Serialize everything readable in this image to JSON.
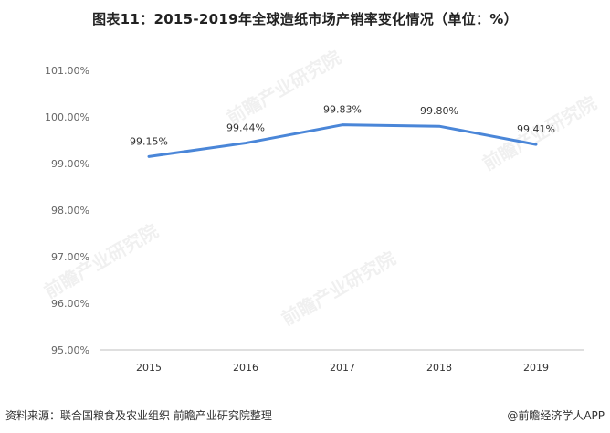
{
  "title": "图表11：2015-2019年全球造纸市场产销率变化情况（单位：%）",
  "watermark": "前瞻产业研究院",
  "source": "资料来源：联合国粮食及农业组织 前瞻产业研究院整理",
  "credit": "@前瞻经济学人APP",
  "colors": {
    "line": "#4a86d8",
    "axis": "#bfbfbf"
  },
  "chart_data": {
    "type": "line",
    "categories": [
      "2015",
      "2016",
      "2017",
      "2018",
      "2019"
    ],
    "values": [
      99.15,
      99.44,
      99.83,
      99.8,
      99.41
    ],
    "value_labels": [
      "99.15%",
      "99.44%",
      "99.83%",
      "99.80%",
      "99.41%"
    ],
    "yticks": [
      "95.00%",
      "96.00%",
      "97.00%",
      "98.00%",
      "99.00%",
      "100.00%",
      "101.00%"
    ],
    "ylim": [
      95,
      101
    ],
    "grid": false
  }
}
